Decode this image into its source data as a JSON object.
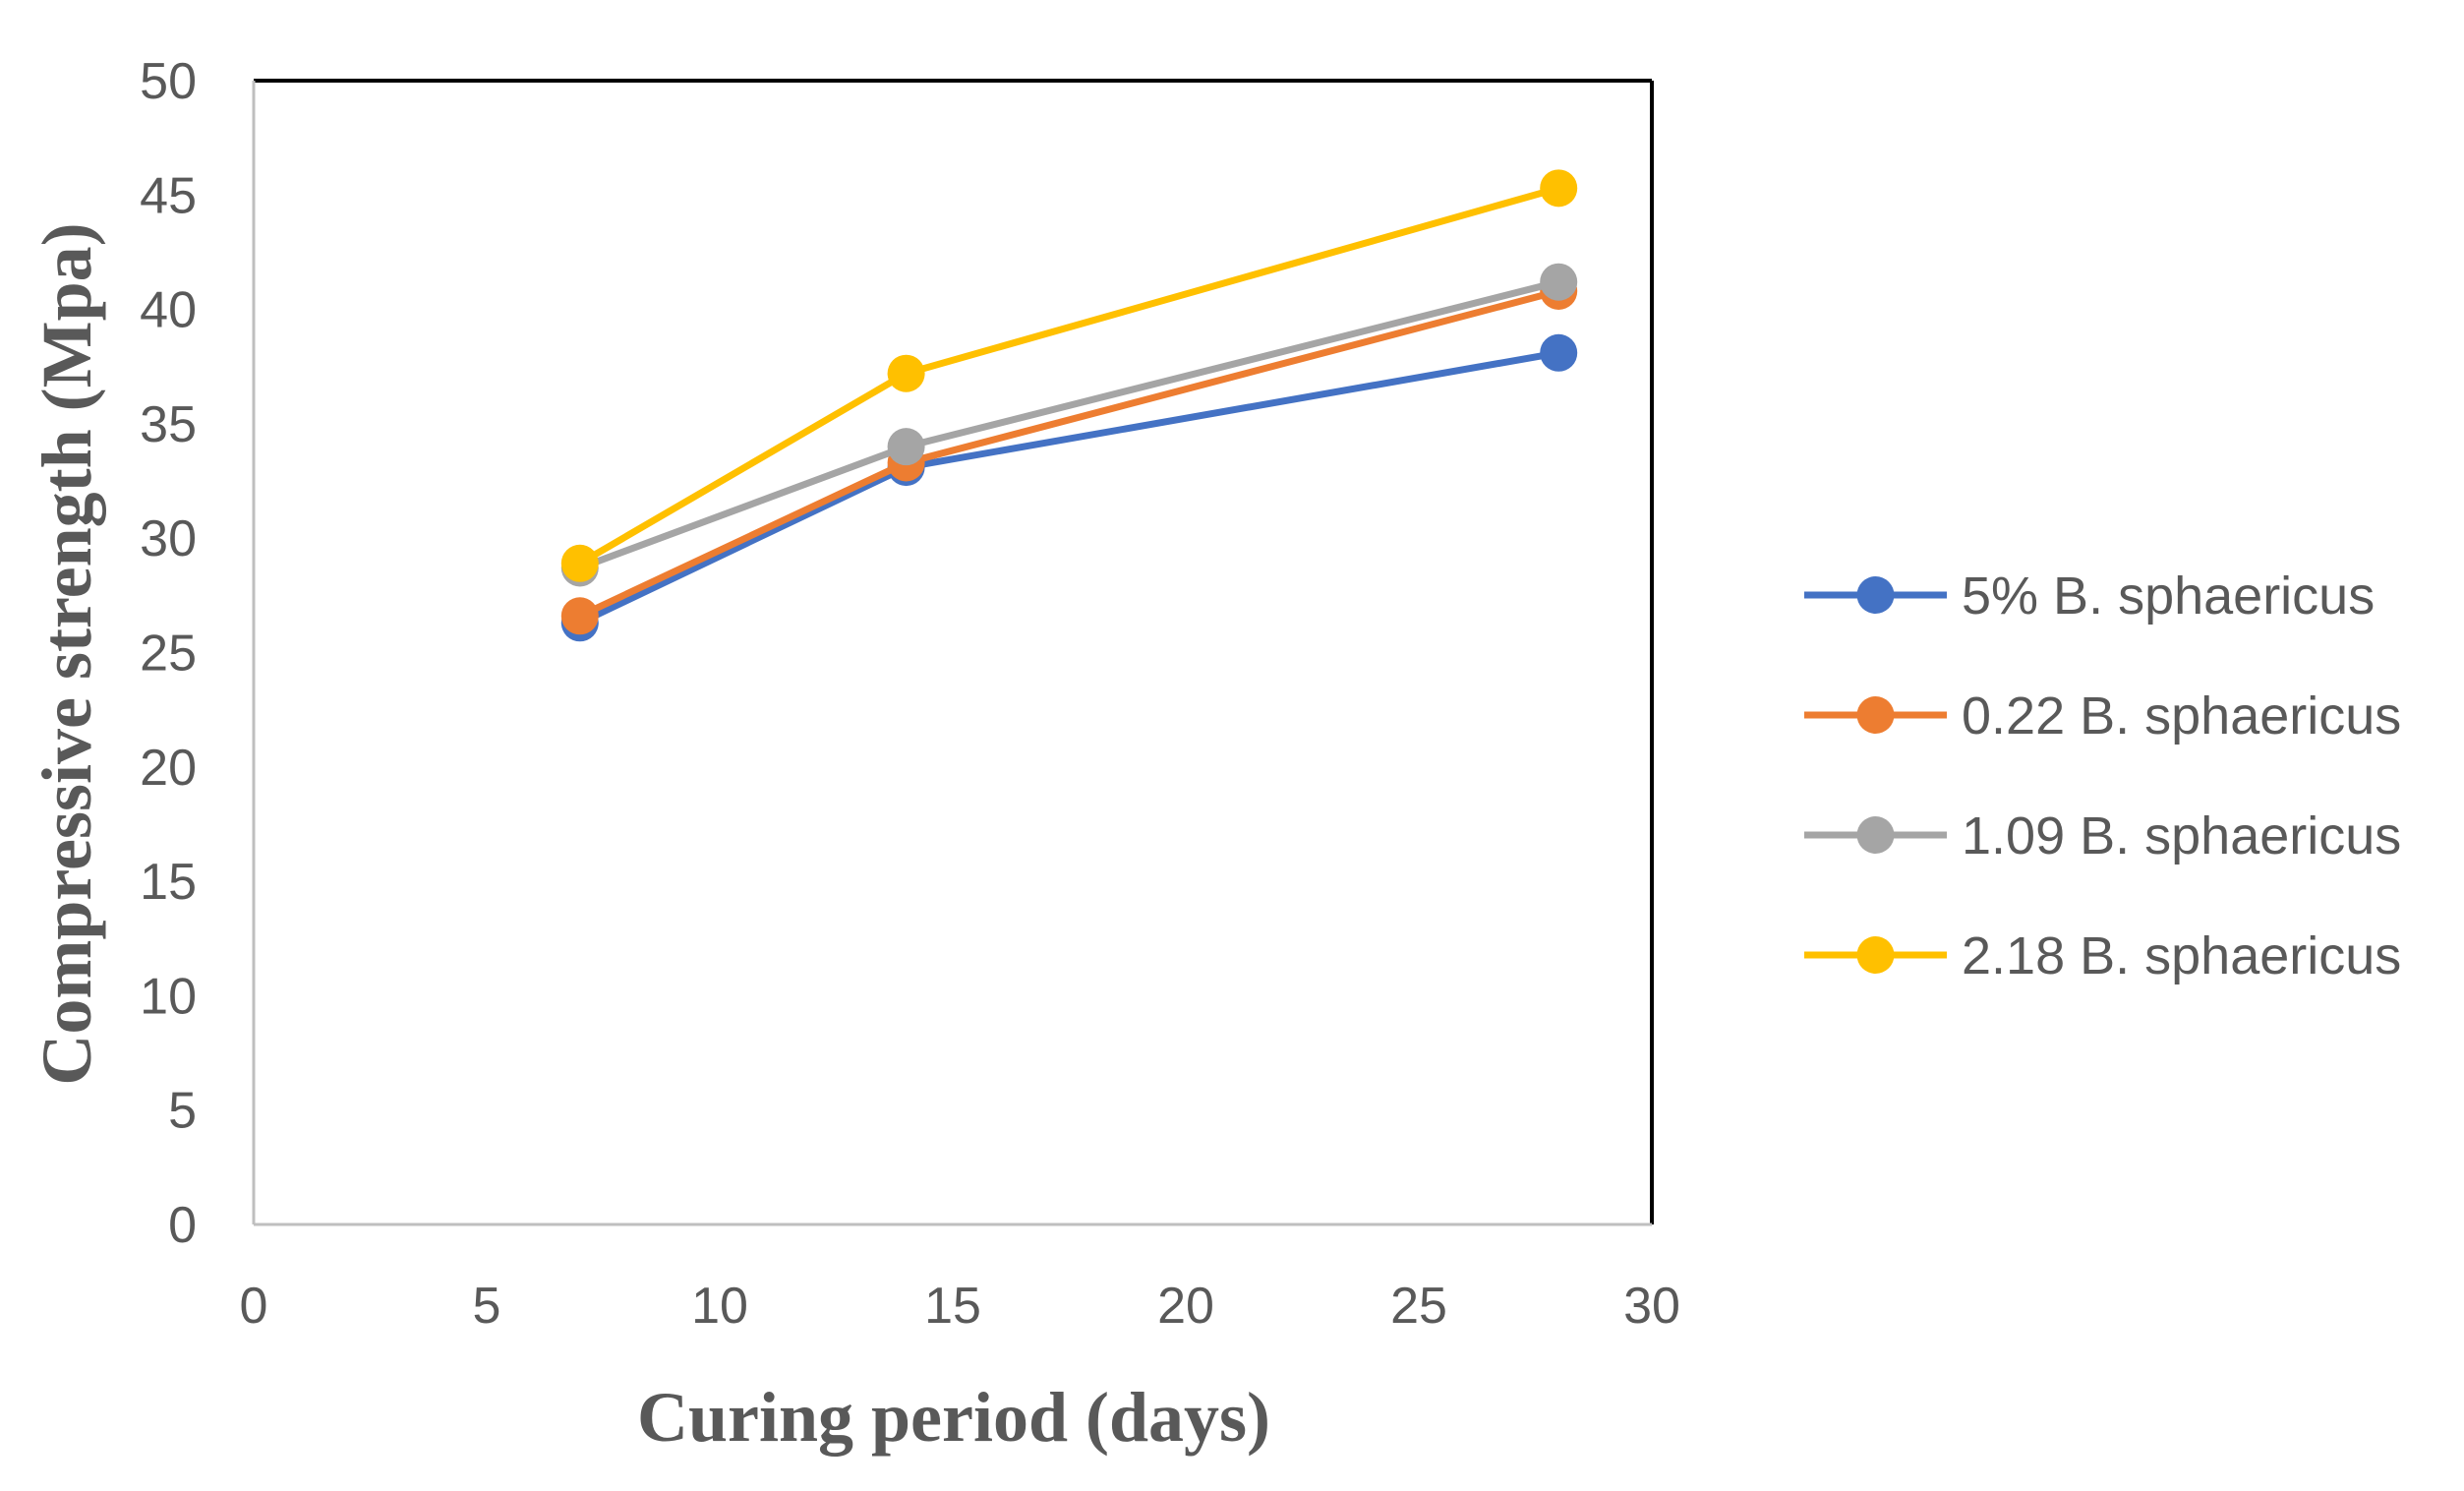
{
  "chart_data": {
    "type": "line",
    "title": "",
    "xlabel": "Curing period (days)",
    "ylabel": "Compressive strength (Mpa)",
    "xlim": [
      0,
      30
    ],
    "ylim": [
      0,
      50
    ],
    "xticks": [
      "0",
      "5",
      "10",
      "15",
      "20",
      "25",
      "30"
    ],
    "yticks": [
      "0",
      "5",
      "10",
      "15",
      "20",
      "25",
      "30",
      "35",
      "40",
      "45",
      "50"
    ],
    "grid": false,
    "legend_position": "right",
    "x": [
      7,
      14,
      28
    ],
    "series": [
      {
        "name": "5% B. sphaericus",
        "color": "#4472C4",
        "values": [
          26.3,
          33.1,
          38.1
        ]
      },
      {
        "name": "0.22 B. sphaericus",
        "color": "#ED7D31",
        "values": [
          26.6,
          33.3,
          40.8
        ]
      },
      {
        "name": "1.09 B. sphaericus",
        "color": "#A5A5A5",
        "values": [
          28.7,
          34.0,
          41.2
        ]
      },
      {
        "name": "2.18 B. sphaericus",
        "color": "#FFC000",
        "values": [
          28.9,
          37.2,
          45.3
        ]
      }
    ]
  }
}
